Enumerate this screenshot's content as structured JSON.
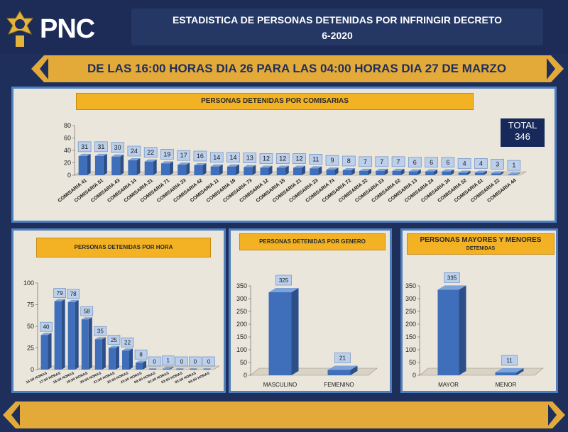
{
  "header": {
    "logo_text": "PNC",
    "title_line1": "ESTADISTICA DE PERSONAS DETENIDAS POR INFRINGIR DECRETO",
    "title_line2": "6-2020"
  },
  "banner": {
    "text": "DE LAS 16:00 HORAS DIA 26 PARA LAS 04:00 HORAS DIA 27 DE MARZO"
  },
  "colors": {
    "navy": "#1f2f5c",
    "gold": "#e3aa3a",
    "panel_bg": "#ebe6dc",
    "bar_blue": "#3f6fba",
    "label_box": "#bcd0ec"
  },
  "panels": {
    "comisarias": {
      "title": "PERSONAS DETENIDAS POR COMISARIAS",
      "total_label": "TOTAL",
      "total_value": "346"
    },
    "hora": {
      "title": "PERSONAS DETENIDAS POR HORA"
    },
    "genero": {
      "title": "PERSONAS DETENIDAS POR GENERO"
    },
    "edad": {
      "title_line1": "PERSONAS MAYORES Y MENORES",
      "title_line2": "DETENIDAS"
    }
  },
  "chart_data": [
    {
      "type": "bar",
      "title": "PERSONAS DETENIDAS POR COMISARIAS",
      "categories": [
        "COMISARIA 41",
        "COMISARIA 51",
        "COMISARIA 43",
        "COMISARIA 14",
        "COMISARIA 31",
        "COMISARIA 71",
        "COMISARIA 33",
        "COMISARIA 42",
        "COMISARIA 11",
        "COMISARIA 16",
        "COMISARIA 73",
        "COMISARIA 12",
        "COMISARIA 15",
        "COMISARIA 21",
        "COMISARIA 23",
        "COMISARIA 74",
        "COMISARIA 72",
        "COMISARIA 32",
        "COMISARIA 53",
        "COMISARIA 62",
        "COMISARIA 13",
        "COMISARIA 24",
        "COMISARIA 34",
        "COMISARIA 52",
        "COMISARIA 61",
        "COMISARIA 22",
        "COMISARIA 44"
      ],
      "values": [
        31,
        31,
        30,
        24,
        22,
        19,
        17,
        16,
        14,
        14,
        13,
        12,
        12,
        12,
        11,
        9,
        8,
        7,
        7,
        7,
        6,
        6,
        6,
        4,
        4,
        3,
        1
      ],
      "yticks": [
        "0",
        "20",
        "40",
        "60",
        "80"
      ],
      "ylim": [
        0,
        80
      ]
    },
    {
      "type": "bar",
      "title": "PERSONAS DETENIDAS POR HORA",
      "categories": [
        "16:00 HORAS",
        "17:00 HORAS",
        "18:00 HORAS",
        "19:00 HORAS",
        "20:00 HORAS",
        "21:00 HORAS",
        "22:00 HORAS",
        "23:00 HORAS",
        "00:00 HORAS",
        "01:00 HORAS",
        "02:00 HORAS",
        "03:00 HORAS",
        "04:00 HORAS"
      ],
      "values": [
        40,
        79,
        78,
        58,
        35,
        25,
        22,
        8,
        0,
        1,
        0,
        0,
        0
      ],
      "yticks": [
        "0",
        "25",
        "50",
        "75",
        "100"
      ],
      "ylim": [
        0,
        100
      ]
    },
    {
      "type": "bar",
      "title": "PERSONAS DETENIDAS POR GENERO",
      "categories": [
        "MASCULINO",
        "FEMENINO"
      ],
      "values": [
        325,
        21
      ],
      "yticks": [
        "0",
        "50",
        "100",
        "150",
        "200",
        "250",
        "300",
        "350"
      ],
      "ylim": [
        0,
        350
      ]
    },
    {
      "type": "bar",
      "title": "PERSONAS MAYORES Y MENORES DETENIDAS",
      "categories": [
        "MAYOR",
        "MENOR"
      ],
      "values": [
        335,
        11
      ],
      "yticks": [
        "0",
        "50",
        "100",
        "150",
        "200",
        "250",
        "300",
        "350"
      ],
      "ylim": [
        0,
        350
      ]
    }
  ]
}
